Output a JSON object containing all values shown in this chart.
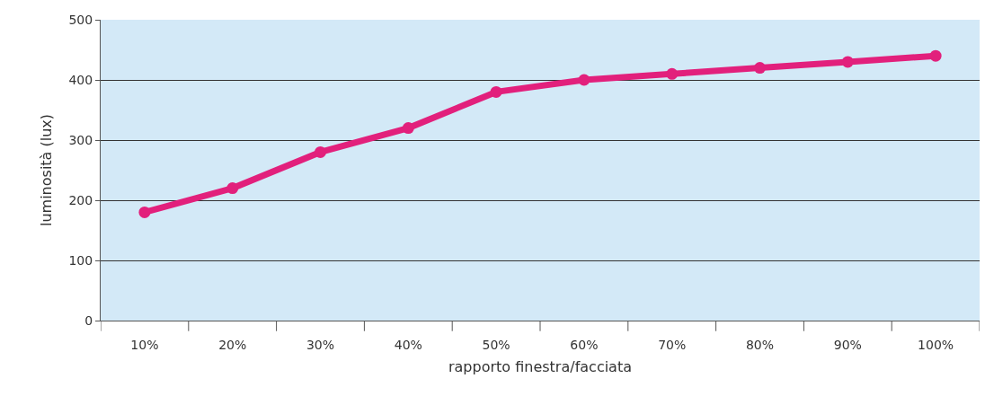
{
  "chart_data": {
    "type": "line",
    "xlabel": "rapporto finestra/facciata",
    "ylabel": "luminosità (lux)",
    "categories": [
      "10%",
      "20%",
      "30%",
      "40%",
      "50%",
      "60%",
      "70%",
      "80%",
      "90%",
      "100%"
    ],
    "series": [
      {
        "color": "#e2207c",
        "values": [
          180,
          220,
          280,
          320,
          380,
          400,
          410,
          420,
          430,
          440
        ]
      }
    ],
    "ylim": [
      0,
      500
    ],
    "yticks": [
      0,
      100,
      200,
      300,
      400,
      500
    ],
    "grid": "y",
    "marker": "circle",
    "line_style": "solid"
  }
}
